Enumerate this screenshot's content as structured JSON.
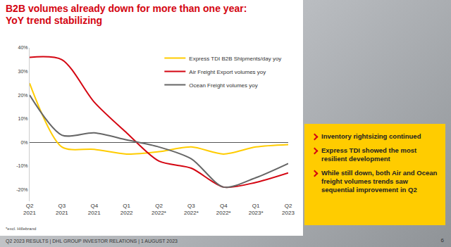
{
  "slide": {
    "title": [
      "B2B volumes already down for more than one year:",
      "YoY trend stabilizing"
    ],
    "bullets": [
      "Inventory rightsizing continued",
      "Express TDI showed the most resilient development",
      "While still down, both Air and Ocean freight volumes trends saw sequential improvement in Q2"
    ],
    "footnote": "*excl. Hillebrand",
    "footer": "Q2 2023 RESULTS | DHL GROUP INVESTOR RELATIONS | 1 AUGUST 2023",
    "page": "6"
  },
  "chart_data": {
    "type": "line",
    "categories": [
      "Q2 2021",
      "Q3 2021",
      "Q4 2021",
      "Q1 2022",
      "Q2 2022*",
      "Q3 2022*",
      "Q4 2022*",
      "Q1 2023*",
      "Q2 2023"
    ],
    "series": [
      {
        "name": "Express TDI B2B Shipments/day yoy",
        "color": "#ffcc00",
        "values": [
          25,
          -2,
          -3,
          -5,
          -4,
          -2,
          -5,
          -2,
          -1
        ]
      },
      {
        "name": "Air Freight Export volumes yoy",
        "color": "#d40511",
        "values": [
          36,
          35,
          17,
          4,
          -8,
          -11,
          -19,
          -17,
          -13
        ]
      },
      {
        "name": "Ocean Freight volumes yoy",
        "color": "#666666",
        "values": [
          20,
          3,
          4,
          1,
          -2,
          -7,
          -19,
          -15,
          -9
        ]
      }
    ],
    "ylim": [
      -25,
      40
    ],
    "yticks": [
      {
        "value": -20,
        "label": "-20%"
      },
      {
        "value": -10,
        "label": "-10%"
      },
      {
        "value": 0,
        "label": "0%"
      },
      {
        "value": 10,
        "label": "10%"
      },
      {
        "value": 20,
        "label": "20%"
      },
      {
        "value": 30,
        "label": "30%"
      },
      {
        "value": 40,
        "label": "40%"
      }
    ],
    "grid": false,
    "legend": "upper right"
  }
}
